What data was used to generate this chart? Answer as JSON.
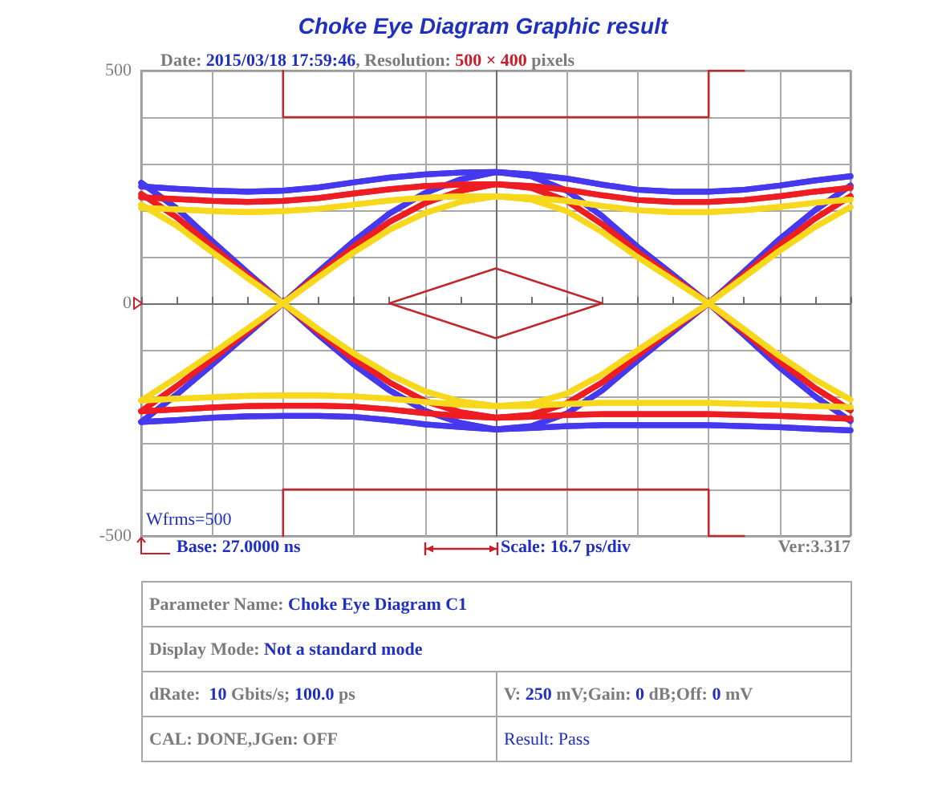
{
  "chart_data": {
    "type": "line",
    "title": "Choke Eye Diagram Graphic result",
    "subtitle": "Date: 2015/03/18 17:59:46, Resolution: 500 × 400 pixels",
    "annotations": [
      "Wfrms=500",
      "Base: 27.0000 ns",
      "Scale: 16.7 ps/div",
      "Ver:3.317",
      "Parameter Name: Choke Eye Diagram C1",
      "Display Mode: Not a standard mode",
      "dRate:  10 Gbits/s; 100.0 ps",
      "V: 250 mV;Gain: 0 dB;Off: 0 mV",
      "CAL: DONE,JGen: OFF",
      "Result: Pass"
    ],
    "categories": [
      null,
      null,
      null,
      null,
      null,
      null,
      null,
      null,
      null,
      null,
      null,
      null,
      null,
      null,
      null,
      null,
      null,
      null,
      null,
      null,
      null
    ],
    "ylim": [
      -500,
      500
    ],
    "yticks": [
      -500,
      {
        "value": -400,
        "label": null
      },
      {
        "value": -300,
        "label": null
      },
      {
        "value": -200,
        "label": null
      },
      {
        "value": -100,
        "label": null
      },
      0,
      {
        "value": 100,
        "label": null
      },
      {
        "value": 200,
        "label": null
      },
      {
        "value": 300,
        "label": null
      },
      {
        "value": 400,
        "label": null
      },
      500
    ],
    "tick_labels": "y",
    "grid": true,
    "series": [
      {
        "color": "#4638ee",
        "values": [
          251,
          246,
          242,
          240,
          242,
          249,
          260,
          270,
          277,
          281,
          282,
          277,
          268,
          255,
          244,
          240,
          240,
          244,
          253,
          264,
          273
        ]
      },
      {
        "color": "#4638ee",
        "values": [
          251,
          246,
          242,
          240,
          242,
          249,
          260,
          270,
          277,
          281,
          282,
          273,
          242,
          187,
          121,
          61,
          0,
          -68,
          -138,
          -200,
          -253
        ]
      },
      {
        "color": "#4638ee",
        "values": [
          -255,
          -196,
          -132,
          -66,
          0,
          68,
          134,
          193,
          237,
          266,
          282,
          277,
          268,
          255,
          244,
          240,
          240,
          244,
          253,
          264,
          273
        ]
      },
      {
        "color": "#4638ee",
        "values": [
          -255,
          -196,
          -132,
          -66,
          0,
          68,
          134,
          193,
          237,
          266,
          282,
          273,
          242,
          187,
          121,
          61,
          0,
          -68,
          -138,
          -200,
          -253
        ]
      },
      {
        "color": "#4638ee",
        "values": [
          -255,
          -251,
          -246,
          -243,
          -242,
          -242,
          -244,
          -251,
          -260,
          -266,
          -271,
          -268,
          -264,
          -262,
          -262,
          -262,
          -262,
          -264,
          -266,
          -270,
          -273
        ]
      },
      {
        "color": "#4638ee",
        "values": [
          -255,
          -251,
          -246,
          -243,
          -242,
          -242,
          -244,
          -251,
          -260,
          -266,
          -271,
          -264,
          -237,
          -187,
          -123,
          -61,
          0,
          68,
          138,
          200,
          253
        ]
      },
      {
        "color": "#4638ee",
        "values": [
          259,
          204,
          134,
          66,
          0,
          -68,
          -132,
          -187,
          -231,
          -257,
          -271,
          -268,
          -264,
          -262,
          -262,
          -262,
          -262,
          -264,
          -266,
          -270,
          -273
        ]
      },
      {
        "color": "#4638ee",
        "values": [
          259,
          204,
          134,
          66,
          0,
          -68,
          -132,
          -187,
          -231,
          -257,
          -271,
          -264,
          -237,
          -187,
          -123,
          -61,
          0,
          68,
          138,
          200,
          253
        ]
      },
      {
        "color": "#ee1d23",
        "values": [
          228,
          224,
          220,
          218,
          220,
          226,
          236,
          245,
          252,
          255,
          256,
          252,
          244,
          232,
          222,
          218,
          218,
          222,
          230,
          240,
          248
        ]
      },
      {
        "color": "#ee1d23",
        "values": [
          228,
          224,
          220,
          218,
          220,
          226,
          236,
          245,
          252,
          255,
          256,
          248,
          220,
          170,
          110,
          55,
          0,
          -62,
          -125,
          -182,
          -230
        ]
      },
      {
        "color": "#ee1d23",
        "values": [
          -232,
          -178,
          -120,
          -60,
          0,
          62,
          122,
          175,
          215,
          242,
          256,
          252,
          244,
          232,
          222,
          218,
          218,
          222,
          230,
          240,
          248
        ]
      },
      {
        "color": "#ee1d23",
        "values": [
          -232,
          -178,
          -120,
          -60,
          0,
          62,
          122,
          175,
          215,
          242,
          256,
          248,
          220,
          170,
          110,
          55,
          0,
          -62,
          -125,
          -182,
          -230
        ]
      },
      {
        "color": "#ee1d23",
        "values": [
          -232,
          -228,
          -224,
          -221,
          -220,
          -220,
          -222,
          -228,
          -236,
          -242,
          -246,
          -244,
          -240,
          -238,
          -238,
          -238,
          -238,
          -240,
          -242,
          -245,
          -248
        ]
      },
      {
        "color": "#ee1d23",
        "values": [
          -232,
          -228,
          -224,
          -221,
          -220,
          -220,
          -222,
          -228,
          -236,
          -242,
          -246,
          -240,
          -215,
          -170,
          -112,
          -55,
          0,
          62,
          125,
          182,
          230
        ]
      },
      {
        "color": "#ee1d23",
        "values": [
          235,
          185,
          122,
          60,
          0,
          -62,
          -120,
          -170,
          -210,
          -234,
          -246,
          -244,
          -240,
          -238,
          -238,
          -238,
          -238,
          -240,
          -242,
          -245,
          -248
        ]
      },
      {
        "color": "#ee1d23",
        "values": [
          235,
          185,
          122,
          60,
          0,
          -62,
          -120,
          -170,
          -210,
          -234,
          -246,
          -240,
          -215,
          -170,
          -112,
          -55,
          0,
          62,
          125,
          182,
          230
        ]
      },
      {
        "color": "#f8d81c",
        "values": [
          205,
          202,
          198,
          196,
          198,
          203,
          212,
          221,
          227,
          230,
          230,
          227,
          220,
          209,
          200,
          196,
          196,
          200,
          207,
          216,
          223
        ]
      },
      {
        "color": "#f8d81c",
        "values": [
          205,
          202,
          198,
          196,
          198,
          203,
          212,
          221,
          227,
          230,
          230,
          223,
          198,
          153,
          99,
          50,
          0,
          -56,
          -113,
          -164,
          -207
        ]
      },
      {
        "color": "#f8d81c",
        "values": [
          -209,
          -160,
          -108,
          -54,
          0,
          56,
          110,
          158,
          194,
          218,
          230,
          227,
          220,
          209,
          200,
          196,
          196,
          200,
          207,
          216,
          223
        ]
      },
      {
        "color": "#f8d81c",
        "values": [
          -209,
          -160,
          -108,
          -54,
          0,
          56,
          110,
          158,
          194,
          218,
          230,
          223,
          198,
          153,
          99,
          50,
          0,
          -56,
          -113,
          -164,
          -207
        ]
      },
      {
        "color": "#f8d81c",
        "values": [
          -209,
          -205,
          -202,
          -199,
          -198,
          -198,
          -200,
          -205,
          -212,
          -218,
          -221,
          -220,
          -216,
          -214,
          -214,
          -214,
          -214,
          -216,
          -218,
          -221,
          -223
        ]
      },
      {
        "color": "#f8d81c",
        "values": [
          -209,
          -205,
          -202,
          -199,
          -198,
          -198,
          -200,
          -205,
          -212,
          -218,
          -221,
          -216,
          -194,
          -153,
          -101,
          -50,
          0,
          56,
          113,
          164,
          207
        ]
      },
      {
        "color": "#f8d81c",
        "values": [
          212,
          167,
          110,
          54,
          0,
          -56,
          -108,
          -153,
          -189,
          -211,
          -221,
          -220,
          -216,
          -214,
          -214,
          -214,
          -214,
          -216,
          -218,
          -221,
          -223
        ]
      },
      {
        "color": "#f8d81c",
        "values": [
          212,
          167,
          110,
          54,
          0,
          -56,
          -108,
          -153,
          -189,
          -211,
          -221,
          -216,
          -194,
          -153,
          -101,
          -50,
          0,
          56,
          113,
          164,
          207
        ]
      },
      {
        "type": "step",
        "color": "#c0282e",
        "values": [
          null,
          null,
          null,
          null,
          500,
          400,
          400,
          400,
          400,
          400,
          400,
          400,
          400,
          400,
          400,
          400,
          400,
          500,
          null,
          null,
          null
        ]
      },
      {
        "type": "step",
        "color": "#c0282e",
        "values": [
          null,
          null,
          null,
          null,
          -500,
          -400,
          -400,
          -400,
          -400,
          -400,
          -400,
          -400,
          -400,
          -400,
          -400,
          -400,
          -400,
          -500,
          null,
          null,
          null
        ]
      },
      {
        "color": "#c0282e",
        "values": [
          null,
          null,
          null,
          null,
          null,
          null,
          null,
          0,
          25,
          50,
          75,
          50,
          25,
          0,
          null,
          null,
          null,
          null,
          null,
          null,
          null
        ]
      },
      {
        "color": "#c0282e",
        "values": [
          null,
          null,
          null,
          null,
          null,
          null,
          null,
          0,
          -25,
          -50,
          -75,
          -50,
          -25,
          0,
          null,
          null,
          null,
          null,
          null,
          null,
          null
        ]
      }
    ]
  }
}
